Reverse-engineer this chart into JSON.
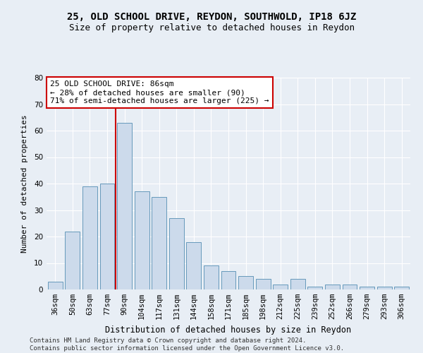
{
  "title1": "25, OLD SCHOOL DRIVE, REYDON, SOUTHWOLD, IP18 6JZ",
  "title2": "Size of property relative to detached houses in Reydon",
  "xlabel": "Distribution of detached houses by size in Reydon",
  "ylabel": "Number of detached properties",
  "categories": [
    "36sqm",
    "50sqm",
    "63sqm",
    "77sqm",
    "90sqm",
    "104sqm",
    "117sqm",
    "131sqm",
    "144sqm",
    "158sqm",
    "171sqm",
    "185sqm",
    "198sqm",
    "212sqm",
    "225sqm",
    "239sqm",
    "252sqm",
    "266sqm",
    "279sqm",
    "293sqm",
    "306sqm"
  ],
  "values": [
    3,
    22,
    39,
    40,
    63,
    37,
    35,
    27,
    18,
    9,
    7,
    5,
    4,
    2,
    4,
    1,
    2,
    2,
    1,
    1,
    1
  ],
  "bar_color": "#ccdaeb",
  "bar_edge_color": "#6699bb",
  "bar_width": 0.85,
  "vline_x": 4.0,
  "vline_color": "#cc0000",
  "annotation_text": "25 OLD SCHOOL DRIVE: 86sqm\n← 28% of detached houses are smaller (90)\n71% of semi-detached houses are larger (225) →",
  "annotation_box_color": "#ffffff",
  "annotation_box_edge": "#cc0000",
  "ylim": [
    0,
    80
  ],
  "yticks": [
    0,
    10,
    20,
    30,
    40,
    50,
    60,
    70,
    80
  ],
  "background_color": "#e8eef5",
  "footer_text": "Contains HM Land Registry data © Crown copyright and database right 2024.\nContains public sector information licensed under the Open Government Licence v3.0.",
  "title1_fontsize": 10,
  "title2_fontsize": 9,
  "xlabel_fontsize": 8.5,
  "ylabel_fontsize": 8,
  "tick_fontsize": 7.5,
  "annotation_fontsize": 8,
  "footer_fontsize": 6.5
}
